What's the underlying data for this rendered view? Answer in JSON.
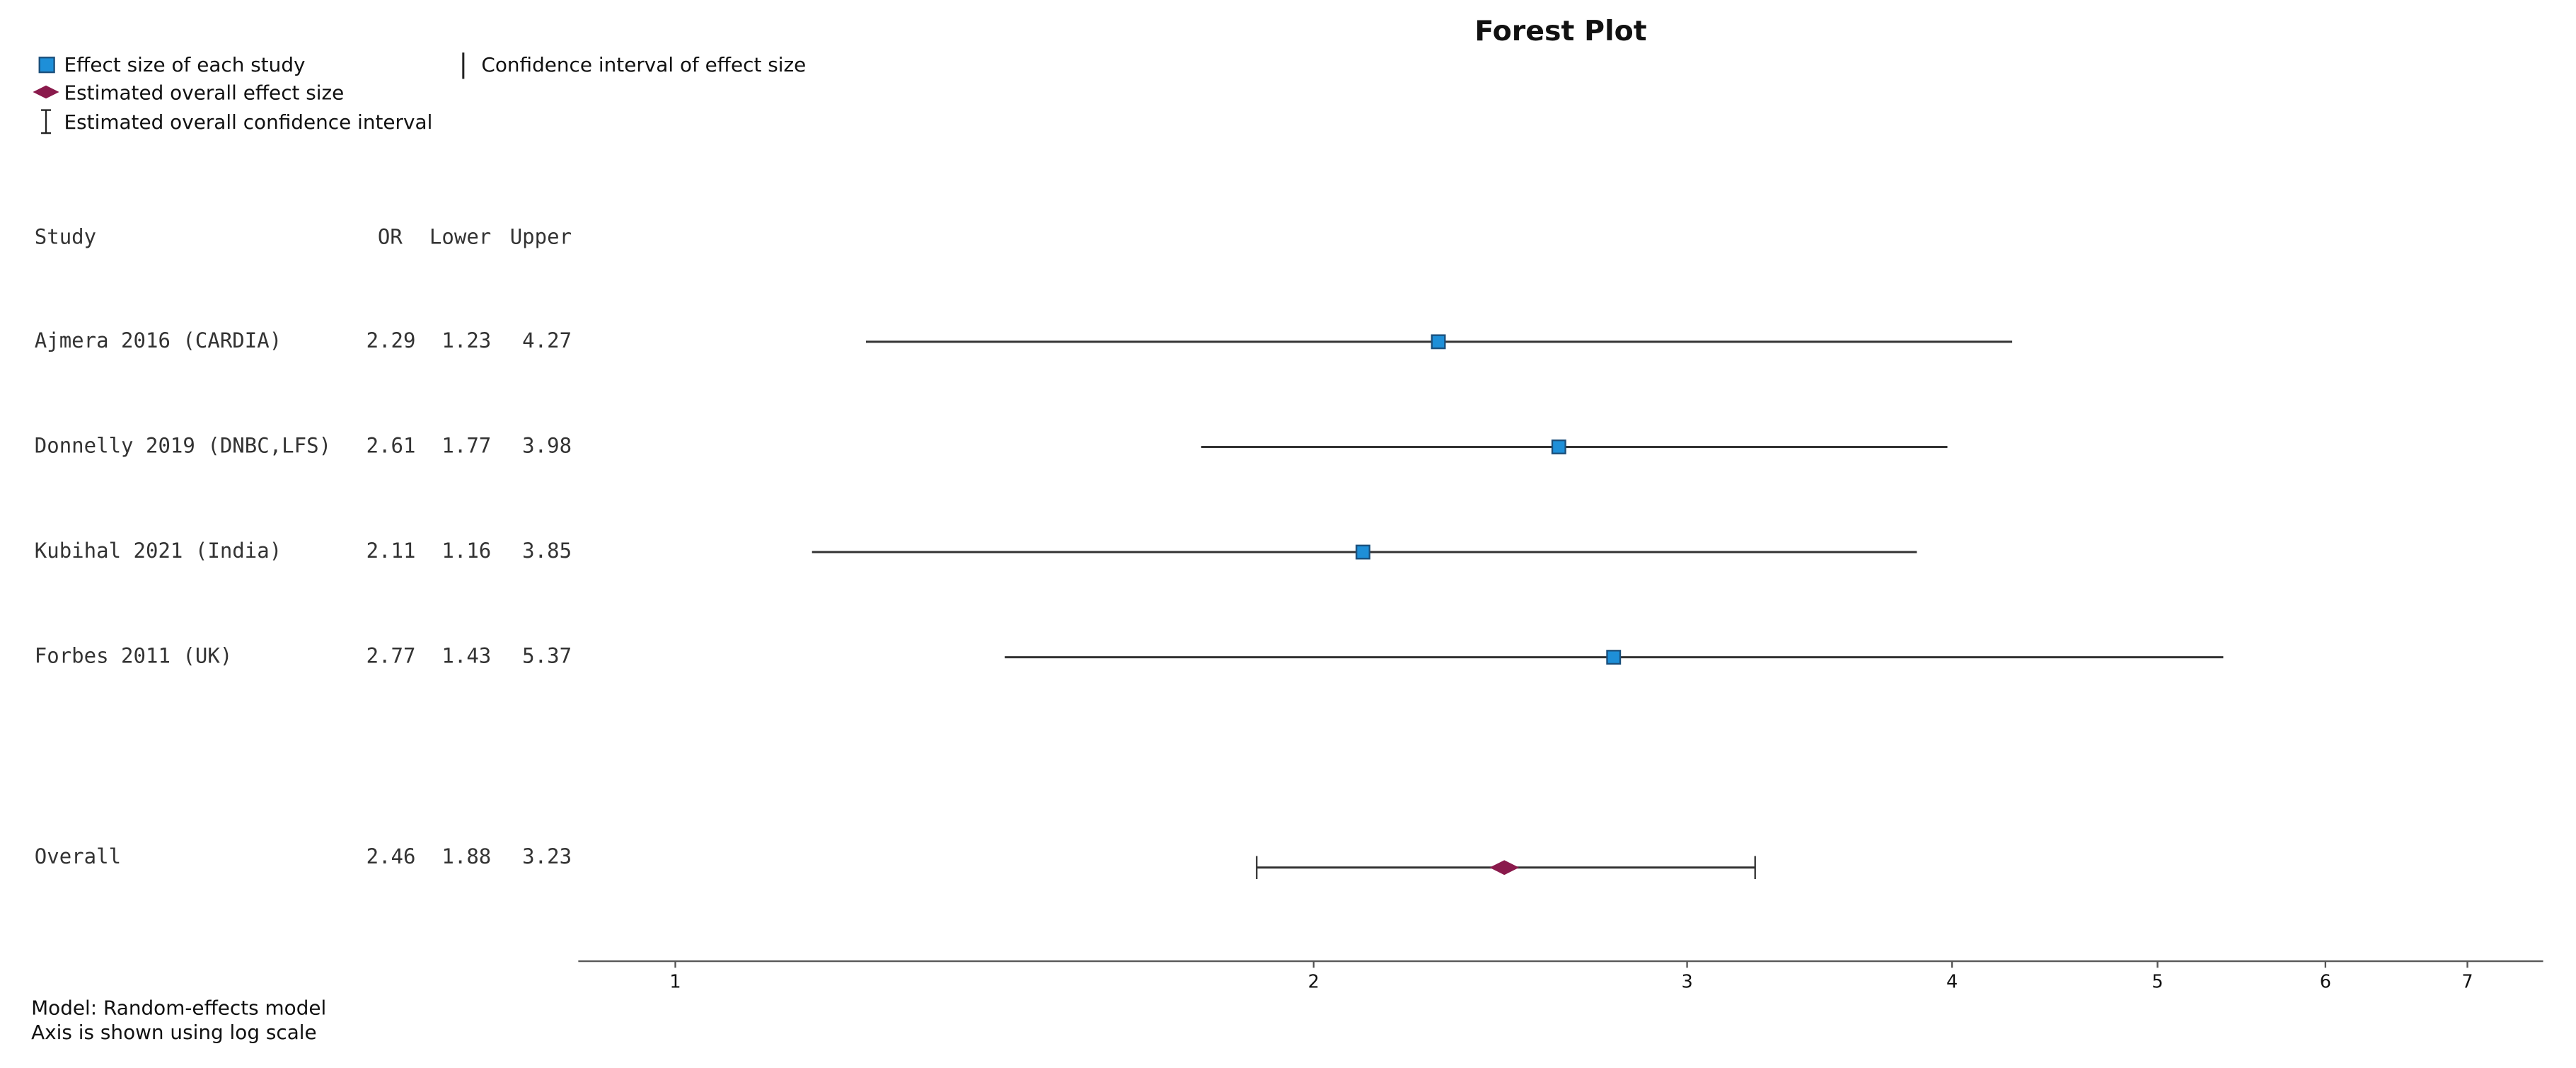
{
  "chart_data": {
    "type": "forest",
    "title": "Forest Plot",
    "legend": [
      "Effect size of each study",
      "Confidence interval of effect size",
      "Estimated overall effect size",
      "Estimated overall confidence interval"
    ],
    "columns": [
      "Study",
      "OR",
      "Lower",
      "Upper"
    ],
    "studies": [
      {
        "name": "Ajmera 2016 (CARDIA)",
        "or": 2.29,
        "lower": 1.23,
        "upper": 4.27
      },
      {
        "name": "Donnelly 2019 (DNBC,LFS)",
        "or": 2.61,
        "lower": 1.77,
        "upper": 3.98
      },
      {
        "name": "Kubihal 2021 (India)",
        "or": 2.11,
        "lower": 1.16,
        "upper": 3.85
      },
      {
        "name": "Forbes 2011 (UK)",
        "or": 2.77,
        "lower": 1.43,
        "upper": 5.37
      }
    ],
    "overall": {
      "name": "Overall",
      "or": 2.46,
      "lower": 1.88,
      "upper": 3.23
    },
    "xlim": [
      0.9,
      7.6
    ],
    "xticks": [
      1,
      2,
      3,
      4,
      5,
      6,
      7
    ],
    "log_scale": true,
    "study_color": "#1e8fd8",
    "overall_color": "#8a1a4c",
    "footnotes": [
      "Model: Random-effects model",
      "Axis is shown using log scale"
    ]
  }
}
